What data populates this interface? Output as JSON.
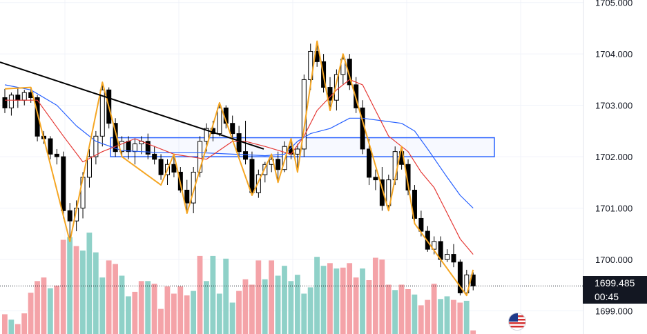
{
  "chart_data": {
    "type": "candlestick",
    "price_axis": {
      "ticks": [
        "1705.000",
        "1704.000",
        "1703.000",
        "1702.000",
        "1701.000",
        "1700.000",
        "1699.000"
      ],
      "ylim": [
        1698.55,
        1705.05
      ]
    },
    "last_price": {
      "value": "1699.485",
      "countdown": "00:45"
    },
    "zone": {
      "low": 1702.0,
      "high": 1702.37
    },
    "trendline": {
      "start": 1703.84,
      "end": 1702.15
    },
    "candles": [
      [
        1703.15,
        1703.32,
        1702.85,
        1702.95
      ],
      [
        1702.95,
        1703.25,
        1702.8,
        1703.2
      ],
      [
        1703.2,
        1703.35,
        1702.95,
        1703.1
      ],
      [
        1703.1,
        1703.3,
        1703.0,
        1703.25
      ],
      [
        1703.25,
        1703.35,
        1703.05,
        1703.15
      ],
      [
        1703.15,
        1703.2,
        1702.3,
        1702.4
      ],
      [
        1702.4,
        1702.5,
        1702.25,
        1702.35
      ],
      [
        1702.35,
        1702.4,
        1701.95,
        1702.05
      ],
      [
        1702.05,
        1702.15,
        1701.85,
        1702.0
      ],
      [
        1702.0,
        1702.1,
        1700.8,
        1700.95
      ],
      [
        1700.95,
        1701.1,
        1700.35,
        1700.75
      ],
      [
        1700.75,
        1701.15,
        1700.55,
        1701.0
      ],
      [
        1701.0,
        1701.7,
        1700.8,
        1701.6
      ],
      [
        1701.6,
        1702.15,
        1701.4,
        1702.0
      ],
      [
        1702.0,
        1702.5,
        1701.85,
        1702.4
      ],
      [
        1702.4,
        1703.45,
        1702.2,
        1703.3
      ],
      [
        1703.3,
        1703.35,
        1702.55,
        1702.65
      ],
      [
        1702.65,
        1702.75,
        1702.0,
        1702.1
      ],
      [
        1702.1,
        1702.4,
        1702.0,
        1702.3
      ],
      [
        1702.3,
        1702.4,
        1701.95,
        1702.1
      ],
      [
        1702.1,
        1702.35,
        1701.85,
        1702.25
      ],
      [
        1702.25,
        1702.4,
        1702.05,
        1702.3
      ],
      [
        1702.3,
        1702.45,
        1701.95,
        1702.05
      ],
      [
        1702.05,
        1702.2,
        1701.85,
        1701.95
      ],
      [
        1701.95,
        1702.05,
        1701.55,
        1701.65
      ],
      [
        1701.65,
        1701.95,
        1701.45,
        1701.85
      ],
      [
        1701.85,
        1702.05,
        1701.6,
        1701.7
      ],
      [
        1701.7,
        1701.8,
        1701.3,
        1701.35
      ],
      [
        1701.35,
        1701.55,
        1700.95,
        1701.1
      ],
      [
        1701.1,
        1701.8,
        1700.9,
        1701.7
      ],
      [
        1701.7,
        1702.4,
        1701.6,
        1702.3
      ],
      [
        1702.3,
        1702.65,
        1702.1,
        1702.55
      ],
      [
        1702.55,
        1702.7,
        1702.3,
        1702.45
      ],
      [
        1702.45,
        1703.05,
        1702.4,
        1702.95
      ],
      [
        1702.95,
        1703.0,
        1702.55,
        1702.65
      ],
      [
        1702.65,
        1702.8,
        1702.35,
        1702.45
      ],
      [
        1702.45,
        1702.6,
        1702.0,
        1702.1
      ],
      [
        1702.1,
        1702.7,
        1701.85,
        1701.95
      ],
      [
        1701.95,
        1702.1,
        1701.25,
        1701.3
      ],
      [
        1701.3,
        1701.75,
        1701.2,
        1701.65
      ],
      [
        1701.65,
        1701.9,
        1701.5,
        1701.85
      ],
      [
        1701.85,
        1702.05,
        1701.7,
        1701.95
      ],
      [
        1701.95,
        1702.1,
        1701.5,
        1701.75
      ],
      [
        1701.75,
        1702.3,
        1701.7,
        1702.2
      ],
      [
        1702.2,
        1702.35,
        1701.95,
        1702.05
      ],
      [
        1702.05,
        1702.25,
        1701.75,
        1702.15
      ],
      [
        1702.15,
        1703.6,
        1702.0,
        1703.5
      ],
      [
        1703.5,
        1704.2,
        1703.3,
        1704.05
      ],
      [
        1704.05,
        1704.25,
        1703.75,
        1703.85
      ],
      [
        1703.85,
        1704.0,
        1703.25,
        1703.35
      ],
      [
        1703.35,
        1703.55,
        1702.95,
        1703.1
      ],
      [
        1703.1,
        1703.7,
        1702.9,
        1703.6
      ],
      [
        1703.6,
        1704.0,
        1703.4,
        1703.9
      ],
      [
        1703.9,
        1704.0,
        1703.3,
        1703.4
      ],
      [
        1703.4,
        1703.55,
        1702.85,
        1702.95
      ],
      [
        1702.95,
        1703.1,
        1702.05,
        1702.15
      ],
      [
        1702.15,
        1702.35,
        1701.45,
        1701.6
      ],
      [
        1701.6,
        1701.75,
        1701.35,
        1701.55
      ],
      [
        1701.55,
        1701.8,
        1700.95,
        1701.05
      ],
      [
        1701.05,
        1701.65,
        1700.95,
        1701.55
      ],
      [
        1701.55,
        1702.2,
        1701.45,
        1702.1
      ],
      [
        1702.1,
        1702.2,
        1701.75,
        1701.85
      ],
      [
        1701.85,
        1701.95,
        1701.25,
        1701.35
      ],
      [
        1701.35,
        1701.45,
        1700.7,
        1700.8
      ],
      [
        1700.8,
        1700.95,
        1700.45,
        1700.55
      ],
      [
        1700.55,
        1700.65,
        1700.15,
        1700.2
      ],
      [
        1700.2,
        1700.45,
        1700.1,
        1700.35
      ],
      [
        1700.35,
        1700.45,
        1699.85,
        1700.0
      ],
      [
        1700.0,
        1700.2,
        1699.95,
        1700.1
      ],
      [
        1700.1,
        1700.3,
        1699.85,
        1699.95
      ],
      [
        1699.95,
        1700.0,
        1699.3,
        1699.35
      ],
      [
        1699.35,
        1699.8,
        1699.3,
        1699.7
      ],
      [
        1699.7,
        1699.75,
        1699.4,
        1699.485
      ]
    ],
    "volumes": [
      [
        0.22,
        "down"
      ],
      [
        0.16,
        "up"
      ],
      [
        0.11,
        "down"
      ],
      [
        0.23,
        "down"
      ],
      [
        0.46,
        "down"
      ],
      [
        0.59,
        "down"
      ],
      [
        0.63,
        "down"
      ],
      [
        0.51,
        "up"
      ],
      [
        0.54,
        "down"
      ],
      [
        1.05,
        "down"
      ],
      [
        1.08,
        "up"
      ],
      [
        0.98,
        "down"
      ],
      [
        0.93,
        "up"
      ],
      [
        1.13,
        "up"
      ],
      [
        0.91,
        "up"
      ],
      [
        0.63,
        "up"
      ],
      [
        0.82,
        "down"
      ],
      [
        0.78,
        "down"
      ],
      [
        0.65,
        "up"
      ],
      [
        0.42,
        "up"
      ],
      [
        0.47,
        "down"
      ],
      [
        0.59,
        "down"
      ],
      [
        0.59,
        "up"
      ],
      [
        0.56,
        "down"
      ],
      [
        0.28,
        "down"
      ],
      [
        0.53,
        "down"
      ],
      [
        0.45,
        "down"
      ],
      [
        0.53,
        "down"
      ],
      [
        0.43,
        "down"
      ],
      [
        0.48,
        "up"
      ],
      [
        0.87,
        "down"
      ],
      [
        0.59,
        "up"
      ],
      [
        0.87,
        "up"
      ],
      [
        0.45,
        "up"
      ],
      [
        0.84,
        "up"
      ],
      [
        0.35,
        "up"
      ],
      [
        0.48,
        "down"
      ],
      [
        0.61,
        "down"
      ],
      [
        0.55,
        "down"
      ],
      [
        0.82,
        "down"
      ],
      [
        0.61,
        "up"
      ],
      [
        0.82,
        "down"
      ],
      [
        0.65,
        "up"
      ],
      [
        0.76,
        "up"
      ],
      [
        0.59,
        "up"
      ],
      [
        0.66,
        "up"
      ],
      [
        0.45,
        "up"
      ],
      [
        0.52,
        "up"
      ],
      [
        0.86,
        "up"
      ],
      [
        0.76,
        "up"
      ],
      [
        0.79,
        "down"
      ],
      [
        0.73,
        "up"
      ],
      [
        0.74,
        "down"
      ],
      [
        0.79,
        "down"
      ],
      [
        0.63,
        "down"
      ],
      [
        0.73,
        "up"
      ],
      [
        0.6,
        "down"
      ],
      [
        0.85,
        "down"
      ],
      [
        0.83,
        "down"
      ],
      [
        0.55,
        "down"
      ],
      [
        0.49,
        "up"
      ],
      [
        0.55,
        "down"
      ],
      [
        0.5,
        "down"
      ],
      [
        0.44,
        "up"
      ],
      [
        0.32,
        "down"
      ],
      [
        0.38,
        "down"
      ],
      [
        0.56,
        "down"
      ],
      [
        0.39,
        "up"
      ],
      [
        0.42,
        "up"
      ],
      [
        0.38,
        "down"
      ],
      [
        0.35,
        "down"
      ],
      [
        0.37,
        "up"
      ],
      [
        0.04,
        "down"
      ]
    ],
    "zigzag": [
      [
        0,
        1703.32
      ],
      [
        4,
        1703.35
      ],
      [
        10,
        1700.35
      ],
      [
        15,
        1703.45
      ],
      [
        18,
        1702.0
      ],
      [
        24,
        1701.45
      ],
      [
        26,
        1702.05
      ],
      [
        28,
        1700.9
      ],
      [
        33,
        1703.05
      ],
      [
        38,
        1701.25
      ],
      [
        41,
        1702.05
      ],
      [
        42,
        1701.5
      ],
      [
        44,
        1702.35
      ],
      [
        45,
        1701.7
      ],
      [
        48,
        1704.25
      ],
      [
        50,
        1702.9
      ],
      [
        52,
        1704.0
      ],
      [
        59,
        1700.95
      ],
      [
        61,
        1702.2
      ],
      [
        63,
        1700.7
      ],
      [
        71,
        1699.3
      ],
      [
        72,
        1699.8
      ]
    ],
    "ma_fast": [
      [
        0,
        1703.1
      ],
      [
        5,
        1703.1
      ],
      [
        9,
        1702.4
      ],
      [
        12,
        1701.9
      ],
      [
        15,
        1702.1
      ],
      [
        20,
        1702.35
      ],
      [
        26,
        1702.05
      ],
      [
        31,
        1701.95
      ],
      [
        35,
        1702.3
      ],
      [
        37,
        1702.3
      ],
      [
        40,
        1702.2
      ],
      [
        44,
        1702.05
      ],
      [
        46,
        1702.4
      ],
      [
        48,
        1702.9
      ],
      [
        51,
        1703.3
      ],
      [
        53,
        1703.5
      ],
      [
        55,
        1703.4
      ],
      [
        57,
        1702.9
      ],
      [
        59,
        1702.4
      ],
      [
        62,
        1702.1
      ],
      [
        64,
        1701.7
      ],
      [
        66,
        1701.4
      ],
      [
        68,
        1700.9
      ],
      [
        70,
        1700.4
      ],
      [
        72,
        1700.1
      ]
    ],
    "ma_slow": [
      [
        0,
        1703.4
      ],
      [
        4,
        1703.3
      ],
      [
        8,
        1703.0
      ],
      [
        11,
        1702.6
      ],
      [
        14,
        1702.3
      ],
      [
        18,
        1702.12
      ],
      [
        24,
        1702.08
      ],
      [
        30,
        1702.08
      ],
      [
        35,
        1702.05
      ],
      [
        40,
        1702.02
      ],
      [
        43,
        1702.05
      ],
      [
        45,
        1702.3
      ],
      [
        47,
        1702.45
      ],
      [
        50,
        1702.55
      ],
      [
        53,
        1702.75
      ],
      [
        55,
        1702.75
      ],
      [
        58,
        1702.7
      ],
      [
        61,
        1702.65
      ],
      [
        63,
        1702.5
      ],
      [
        65,
        1702.15
      ],
      [
        68,
        1701.6
      ],
      [
        70,
        1701.25
      ],
      [
        72,
        1701.0
      ]
    ],
    "colors": {
      "candle_up": "#ffffff",
      "candle_down": "#000000",
      "candle_border": "#000000",
      "volume_up": "#8fd1c8",
      "volume_down": "#f4a3a8",
      "zigzag": "#f5a623",
      "ma_fast": "#e53935",
      "ma_slow": "#2962ff",
      "zone_border": "#2962ff",
      "trendline": "#000000"
    }
  }
}
